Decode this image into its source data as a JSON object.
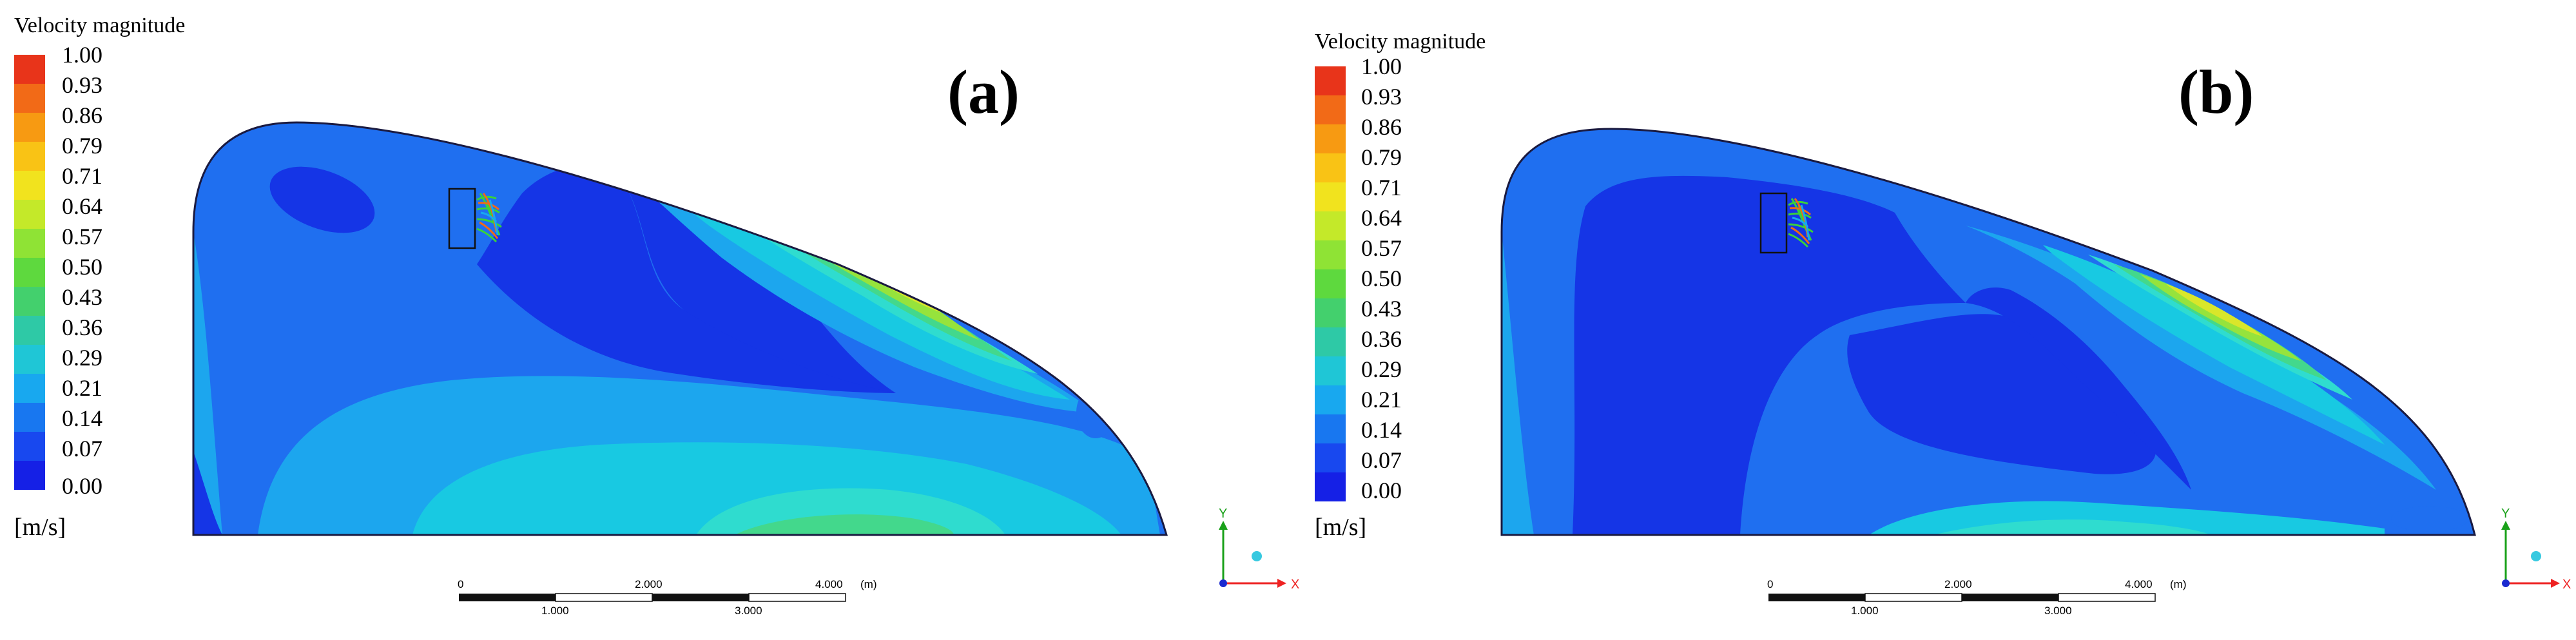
{
  "figure": {
    "panels": [
      {
        "label": "(a)",
        "legend": {
          "title": "Velocity magnitude",
          "unit": "[m/s]",
          "ticks": [
            "1.00",
            "0.93",
            "0.86",
            "0.79",
            "0.71",
            "0.64",
            "0.57",
            "0.50",
            "0.43",
            "0.36",
            "0.29",
            "0.21",
            "0.14",
            "0.07",
            "0.00"
          ]
        },
        "scale_bar": {
          "top_labels": [
            "0",
            "2.000",
            "4.000"
          ],
          "unit": "(m)",
          "bottom_labels": [
            "1.000",
            "3.000"
          ]
        },
        "axes": {
          "y": "Y",
          "x": "X"
        }
      },
      {
        "label": "(b)",
        "legend": {
          "title": "Velocity magnitude",
          "unit": "[m/s]",
          "ticks": [
            "1.00",
            "0.93",
            "0.86",
            "0.79",
            "0.71",
            "0.64",
            "0.57",
            "0.50",
            "0.43",
            "0.36",
            "0.29",
            "0.21",
            "0.14",
            "0.07",
            "0.00"
          ]
        },
        "scale_bar": {
          "top_labels": [
            "0",
            "2.000",
            "4.000"
          ],
          "unit": "(m)",
          "bottom_labels": [
            "1.000",
            "3.000"
          ]
        },
        "axes": {
          "y": "Y",
          "x": "X"
        }
      }
    ]
  },
  "colors": {
    "colormap": [
      "#e8341a",
      "#f26a17",
      "#f79a12",
      "#f9c315",
      "#f1e31e",
      "#c4e929",
      "#8fe335",
      "#5ed93e",
      "#43d06d",
      "#2ec9a6",
      "#1fc6d6",
      "#18a8ef",
      "#1877f0",
      "#1848ef",
      "#1520e6"
    ],
    "dark_blue": "#1535e6",
    "mid_blue": "#1f6ff0",
    "light_blue": "#1ca6ee",
    "cyan": "#18c9e2",
    "aqua": "#2fdccf",
    "green": "#43d88c",
    "lime": "#96e33c",
    "yellow": "#d9e62a"
  }
}
